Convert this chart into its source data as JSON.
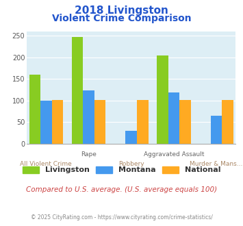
{
  "title_line1": "2018 Livingston",
  "title_line2": "Violent Crime Comparison",
  "categories": [
    "All Violent Crime",
    "Rape",
    "Robbery",
    "Aggravated Assault",
    "Murder & Mans..."
  ],
  "series": {
    "Livingston": [
      160,
      247,
      0,
      204,
      0
    ],
    "Montana": [
      100,
      123,
      29,
      119,
      65
    ],
    "National": [
      101,
      101,
      101,
      101,
      101
    ]
  },
  "colors": {
    "Livingston": "#88cc22",
    "Montana": "#4499ee",
    "National": "#ffaa22"
  },
  "ylim": [
    0,
    260
  ],
  "yticks": [
    0,
    50,
    100,
    150,
    200,
    250
  ],
  "background_color": "#ddeef5",
  "title_color": "#2255cc",
  "footer_text": "Compared to U.S. average. (U.S. average equals 100)",
  "copyright_text": "© 2025 CityRating.com - https://www.cityrating.com/crime-statistics/",
  "footer_color": "#cc4444",
  "copyright_color": "#888888",
  "top_label_color": "#666666",
  "bottom_label_color": "#aa8866"
}
